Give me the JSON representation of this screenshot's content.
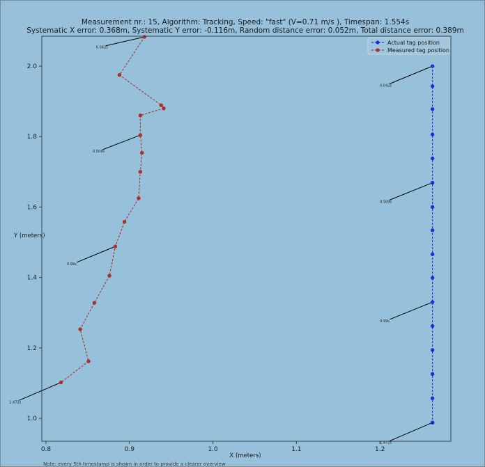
{
  "colors": {
    "background": "#97c1da",
    "axes_frame": "#3a3f45",
    "actual": "#1f2fd6",
    "measured": "#a8312b",
    "annotation_line": "#000000"
  },
  "chart_data": {
    "type": "scatter",
    "title_line1": "Measurement nr.: 15, Algorithm: Tracking, Speed: \"fast\" (V=0.71 m/s ), Timespan: 1.554s",
    "title_line2": "Systematic X error: 0.368m, Systematic Y error: -0.116m, Random distance error: 0.052m, Total distance error: 0.389m",
    "xlabel": "X (meters)",
    "ylabel": "Y (meters)",
    "xlim": [
      0.795,
      1.285
    ],
    "ylim": [
      0.935,
      2.085
    ],
    "xticks": [
      {
        "value": 0.8,
        "label": "0.8"
      },
      {
        "value": 0.9,
        "label": "0.9"
      },
      {
        "value": 1.0,
        "label": "1.0"
      },
      {
        "value": 1.1,
        "label": "1.1"
      },
      {
        "value": 1.2,
        "label": "1.2"
      }
    ],
    "yticks": [
      {
        "value": 1.0,
        "label": "1.0"
      },
      {
        "value": 1.2,
        "label": "1.2"
      },
      {
        "value": 1.4,
        "label": "1.4"
      },
      {
        "value": 1.6,
        "label": "1.6"
      },
      {
        "value": 1.8,
        "label": "1.8"
      },
      {
        "value": 2.0,
        "label": "2.0"
      }
    ],
    "grid": false,
    "legend_position": "top-right",
    "series": [
      {
        "name": "Actual tag position",
        "color": "#1f2fd6",
        "x": [
          1.263,
          1.263,
          1.263,
          1.263,
          1.263,
          1.263,
          1.263,
          1.263,
          1.263,
          1.263,
          1.263,
          1.263,
          1.263,
          1.263,
          1.263,
          1.263,
          1.263,
          1.263
        ],
        "y": [
          2.0,
          1.943,
          1.878,
          1.806,
          1.738,
          1.669,
          1.6,
          1.534,
          1.466,
          1.399,
          1.33,
          1.262,
          1.194,
          1.126,
          1.057,
          0.988,
          0.988,
          0.988
        ]
      },
      {
        "name": "Measured tag position",
        "color": "#a8312b",
        "x": [
          0.918,
          0.888,
          0.938,
          0.941,
          0.913,
          0.913,
          0.915,
          0.913,
          0.911,
          0.894,
          0.883,
          0.876,
          0.858,
          0.841,
          0.851,
          0.818
        ],
        "y": [
          2.083,
          1.975,
          1.889,
          1.88,
          1.86,
          1.804,
          1.754,
          1.7,
          1.625,
          1.558,
          1.488,
          1.405,
          1.328,
          1.253,
          1.162,
          1.102
        ]
      }
    ],
    "annotations": [
      {
        "text": "0.042s",
        "x": 0.918,
        "y": 2.083,
        "text_x": 0.86,
        "text_y": 2.05
      },
      {
        "text": "0.509s",
        "x": 0.913,
        "y": 1.804,
        "text_x": 0.856,
        "text_y": 1.755
      },
      {
        "text": "0.99s",
        "x": 0.883,
        "y": 1.488,
        "text_x": 0.825,
        "text_y": 1.435
      },
      {
        "text": "1.472s",
        "x": 0.818,
        "y": 1.102,
        "text_x": 0.756,
        "text_y": 1.043
      },
      {
        "text": "0.042s",
        "x": 1.263,
        "y": 2.0,
        "text_x": 1.2,
        "text_y": 1.942
      },
      {
        "text": "0.509s",
        "x": 1.263,
        "y": 1.669,
        "text_x": 1.2,
        "text_y": 1.612
      },
      {
        "text": "0.99s",
        "x": 1.263,
        "y": 1.33,
        "text_x": 1.2,
        "text_y": 1.273
      },
      {
        "text": "1.472s",
        "x": 1.263,
        "y": 0.988,
        "text_x": 1.2,
        "text_y": 0.928
      }
    ]
  },
  "note": "Note: every 5th timestamp is shown in order to provide a clearer overview"
}
